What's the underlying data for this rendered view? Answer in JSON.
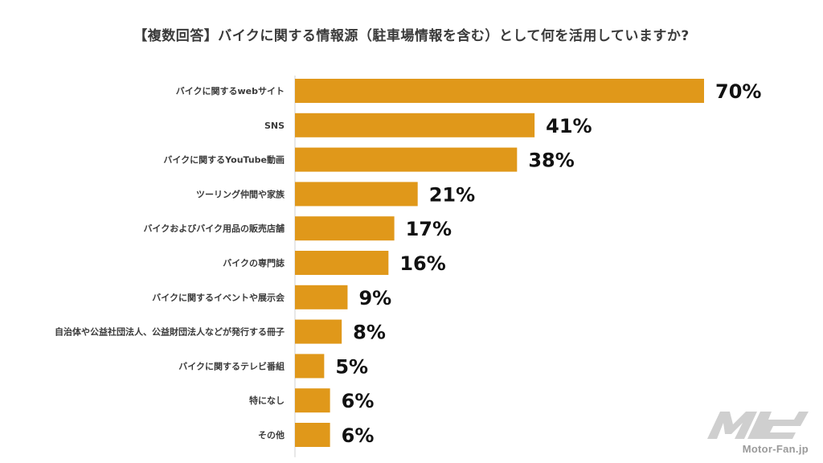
{
  "colors": {
    "bar": "#E0981A",
    "axis": "#d0d0d0",
    "text": "#3a3a3a",
    "logo": "#c7c7c7"
  },
  "chart_data": {
    "type": "bar",
    "orientation": "horizontal",
    "title": "【複数回答】バイクに関する情報源（駐車場情報を含む）として何を活用していますか?",
    "categories": [
      "バイクに関するwebサイト",
      "SNS",
      "バイクに関するYouTube動画",
      "ツーリング仲間や家族",
      "バイクおよびバイク用品の販売店舗",
      "バイクの専門誌",
      "バイクに関するイベントや展示会",
      "自治体や公益社団法人、公益財団法人などが発行する冊子",
      "バイクに関するテレビ番組",
      "特になし",
      "その他"
    ],
    "values": [
      70,
      41,
      38,
      21,
      17,
      16,
      9,
      8,
      5,
      6,
      6
    ],
    "value_labels": [
      "70%",
      "41%",
      "38%",
      "21%",
      "17%",
      "16%",
      "9%",
      "8%",
      "5%",
      "6%",
      "6%"
    ],
    "xlim": [
      0,
      70
    ],
    "grid": false,
    "legend": "none"
  },
  "logo": {
    "text": "Motor-Fan.jp",
    "mark": "MF"
  }
}
